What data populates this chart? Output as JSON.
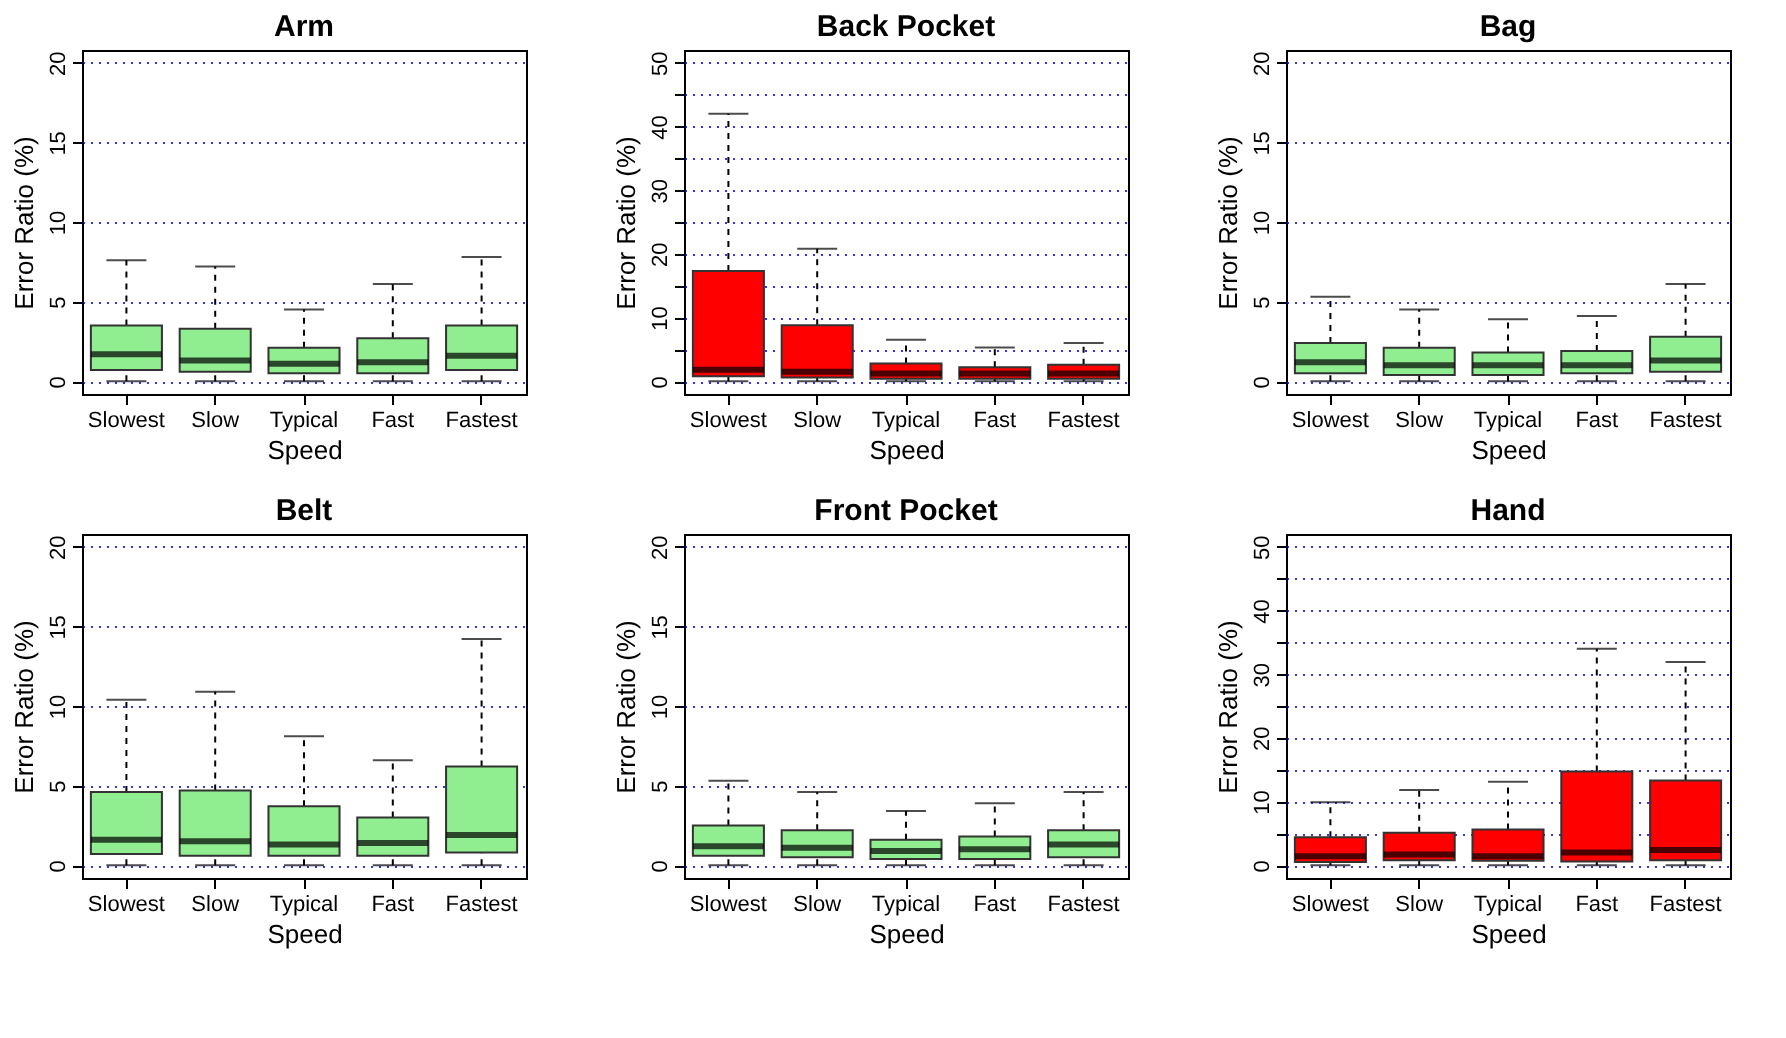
{
  "chart_data": [
    {
      "type": "box",
      "title": "Arm",
      "xlabel": "Speed",
      "ylabel": "Error Ratio (%)",
      "categories": [
        "Slowest",
        "Slow",
        "Typical",
        "Fast",
        "Fastest"
      ],
      "color": "#90ee90",
      "ylim": [
        -0.8,
        20.8
      ],
      "yticks": [
        0,
        5,
        10,
        15,
        20
      ],
      "grid": "y",
      "boxes": [
        {
          "low": 0,
          "q1": 0.7,
          "median": 1.7,
          "q3": 3.5,
          "high": 7.6
        },
        {
          "low": 0,
          "q1": 0.6,
          "median": 1.3,
          "q3": 3.3,
          "high": 7.2
        },
        {
          "low": 0,
          "q1": 0.5,
          "median": 1.1,
          "q3": 2.1,
          "high": 4.5
        },
        {
          "low": 0,
          "q1": 0.5,
          "median": 1.2,
          "q3": 2.7,
          "high": 6.1
        },
        {
          "low": 0,
          "q1": 0.7,
          "median": 1.6,
          "q3": 3.5,
          "high": 7.8
        }
      ]
    },
    {
      "type": "box",
      "title": "Back Pocket",
      "xlabel": "Speed",
      "ylabel": "Error Ratio (%)",
      "categories": [
        "Slowest",
        "Slow",
        "Typical",
        "Fast",
        "Fastest"
      ],
      "color": "#ff0000",
      "ylim": [
        -2,
        52
      ],
      "yticks": [
        0,
        {
          "value": 5,
          "label": null
        },
        10,
        {
          "value": 15,
          "label": null
        },
        20,
        {
          "value": 25,
          "label": null
        },
        30,
        {
          "value": 35,
          "label": null
        },
        40,
        {
          "value": 45,
          "label": null
        },
        50
      ],
      "grid": "y",
      "boxes": [
        {
          "low": 0,
          "q1": 0.8,
          "median": 1.8,
          "q3": 17.3,
          "high": 42
        },
        {
          "low": 0,
          "q1": 0.6,
          "median": 1.5,
          "q3": 8.8,
          "high": 20.8
        },
        {
          "low": 0,
          "q1": 0.4,
          "median": 1.2,
          "q3": 2.8,
          "high": 6.5
        },
        {
          "low": 0,
          "q1": 0.4,
          "median": 1.2,
          "q3": 2.2,
          "high": 5.3
        },
        {
          "low": 0,
          "q1": 0.4,
          "median": 1.2,
          "q3": 2.6,
          "high": 6.0
        }
      ]
    },
    {
      "type": "box",
      "title": "Bag",
      "xlabel": "Speed",
      "ylabel": "Error Ratio (%)",
      "categories": [
        "Slowest",
        "Slow",
        "Typical",
        "Fast",
        "Fastest"
      ],
      "color": "#90ee90",
      "ylim": [
        -0.8,
        20.8
      ],
      "yticks": [
        0,
        5,
        10,
        15,
        20
      ],
      "grid": "y",
      "boxes": [
        {
          "low": 0,
          "q1": 0.5,
          "median": 1.2,
          "q3": 2.4,
          "high": 5.3
        },
        {
          "low": 0,
          "q1": 0.4,
          "median": 1.0,
          "q3": 2.1,
          "high": 4.5
        },
        {
          "low": 0,
          "q1": 0.4,
          "median": 1.0,
          "q3": 1.8,
          "high": 3.9
        },
        {
          "low": 0,
          "q1": 0.5,
          "median": 1.0,
          "q3": 1.9,
          "high": 4.1
        },
        {
          "low": 0,
          "q1": 0.6,
          "median": 1.3,
          "q3": 2.8,
          "high": 6.1
        }
      ]
    },
    {
      "type": "box",
      "title": "Belt",
      "xlabel": "Speed",
      "ylabel": "Error Ratio (%)",
      "categories": [
        "Slowest",
        "Slow",
        "Typical",
        "Fast",
        "Fastest"
      ],
      "color": "#90ee90",
      "ylim": [
        -0.8,
        20.8
      ],
      "yticks": [
        0,
        5,
        10,
        15,
        20
      ],
      "grid": "y",
      "boxes": [
        {
          "low": 0,
          "q1": 0.7,
          "median": 1.6,
          "q3": 4.6,
          "high": 10.4
        },
        {
          "low": 0,
          "q1": 0.6,
          "median": 1.5,
          "q3": 4.7,
          "high": 10.9
        },
        {
          "low": 0,
          "q1": 0.6,
          "median": 1.3,
          "q3": 3.7,
          "high": 8.1
        },
        {
          "low": 0,
          "q1": 0.6,
          "median": 1.4,
          "q3": 3.0,
          "high": 6.6
        },
        {
          "low": 0,
          "q1": 0.8,
          "median": 1.9,
          "q3": 6.2,
          "high": 14.2
        }
      ]
    },
    {
      "type": "box",
      "title": "Front Pocket",
      "xlabel": "Speed",
      "ylabel": "Error Ratio (%)",
      "categories": [
        "Slowest",
        "Slow",
        "Typical",
        "Fast",
        "Fastest"
      ],
      "color": "#90ee90",
      "ylim": [
        -0.8,
        20.8
      ],
      "yticks": [
        0,
        5,
        10,
        15,
        20
      ],
      "grid": "y",
      "boxes": [
        {
          "low": 0,
          "q1": 0.6,
          "median": 1.2,
          "q3": 2.5,
          "high": 5.3
        },
        {
          "low": 0,
          "q1": 0.5,
          "median": 1.1,
          "q3": 2.2,
          "high": 4.6
        },
        {
          "low": 0,
          "q1": 0.4,
          "median": 0.9,
          "q3": 1.6,
          "high": 3.4
        },
        {
          "low": 0,
          "q1": 0.4,
          "median": 1.0,
          "q3": 1.8,
          "high": 3.9
        },
        {
          "low": 0,
          "q1": 0.5,
          "median": 1.3,
          "q3": 2.2,
          "high": 4.6
        }
      ]
    },
    {
      "type": "box",
      "title": "Hand",
      "xlabel": "Speed",
      "ylabel": "Error Ratio (%)",
      "categories": [
        "Slowest",
        "Slow",
        "Typical",
        "Fast",
        "Fastest"
      ],
      "color": "#ff0000",
      "ylim": [
        -2,
        52
      ],
      "yticks": [
        0,
        {
          "value": 5,
          "label": null
        },
        10,
        {
          "value": 15,
          "label": null
        },
        20,
        {
          "value": 25,
          "label": null
        },
        30,
        {
          "value": 35,
          "label": null
        },
        40,
        {
          "value": 45,
          "label": null
        },
        50
      ],
      "grid": "y",
      "boxes": [
        {
          "low": 0,
          "q1": 0.5,
          "median": 1.4,
          "q3": 4.4,
          "high": 9.9
        },
        {
          "low": 0,
          "q1": 0.8,
          "median": 1.7,
          "q3": 5.1,
          "high": 11.8
        },
        {
          "low": 0,
          "q1": 0.7,
          "median": 1.4,
          "q3": 5.6,
          "high": 13.1
        },
        {
          "low": 0,
          "q1": 0.6,
          "median": 2.0,
          "q3": 14.7,
          "high": 34
        },
        {
          "low": 0,
          "q1": 0.8,
          "median": 2.4,
          "q3": 13.3,
          "high": 31.9
        }
      ]
    }
  ]
}
